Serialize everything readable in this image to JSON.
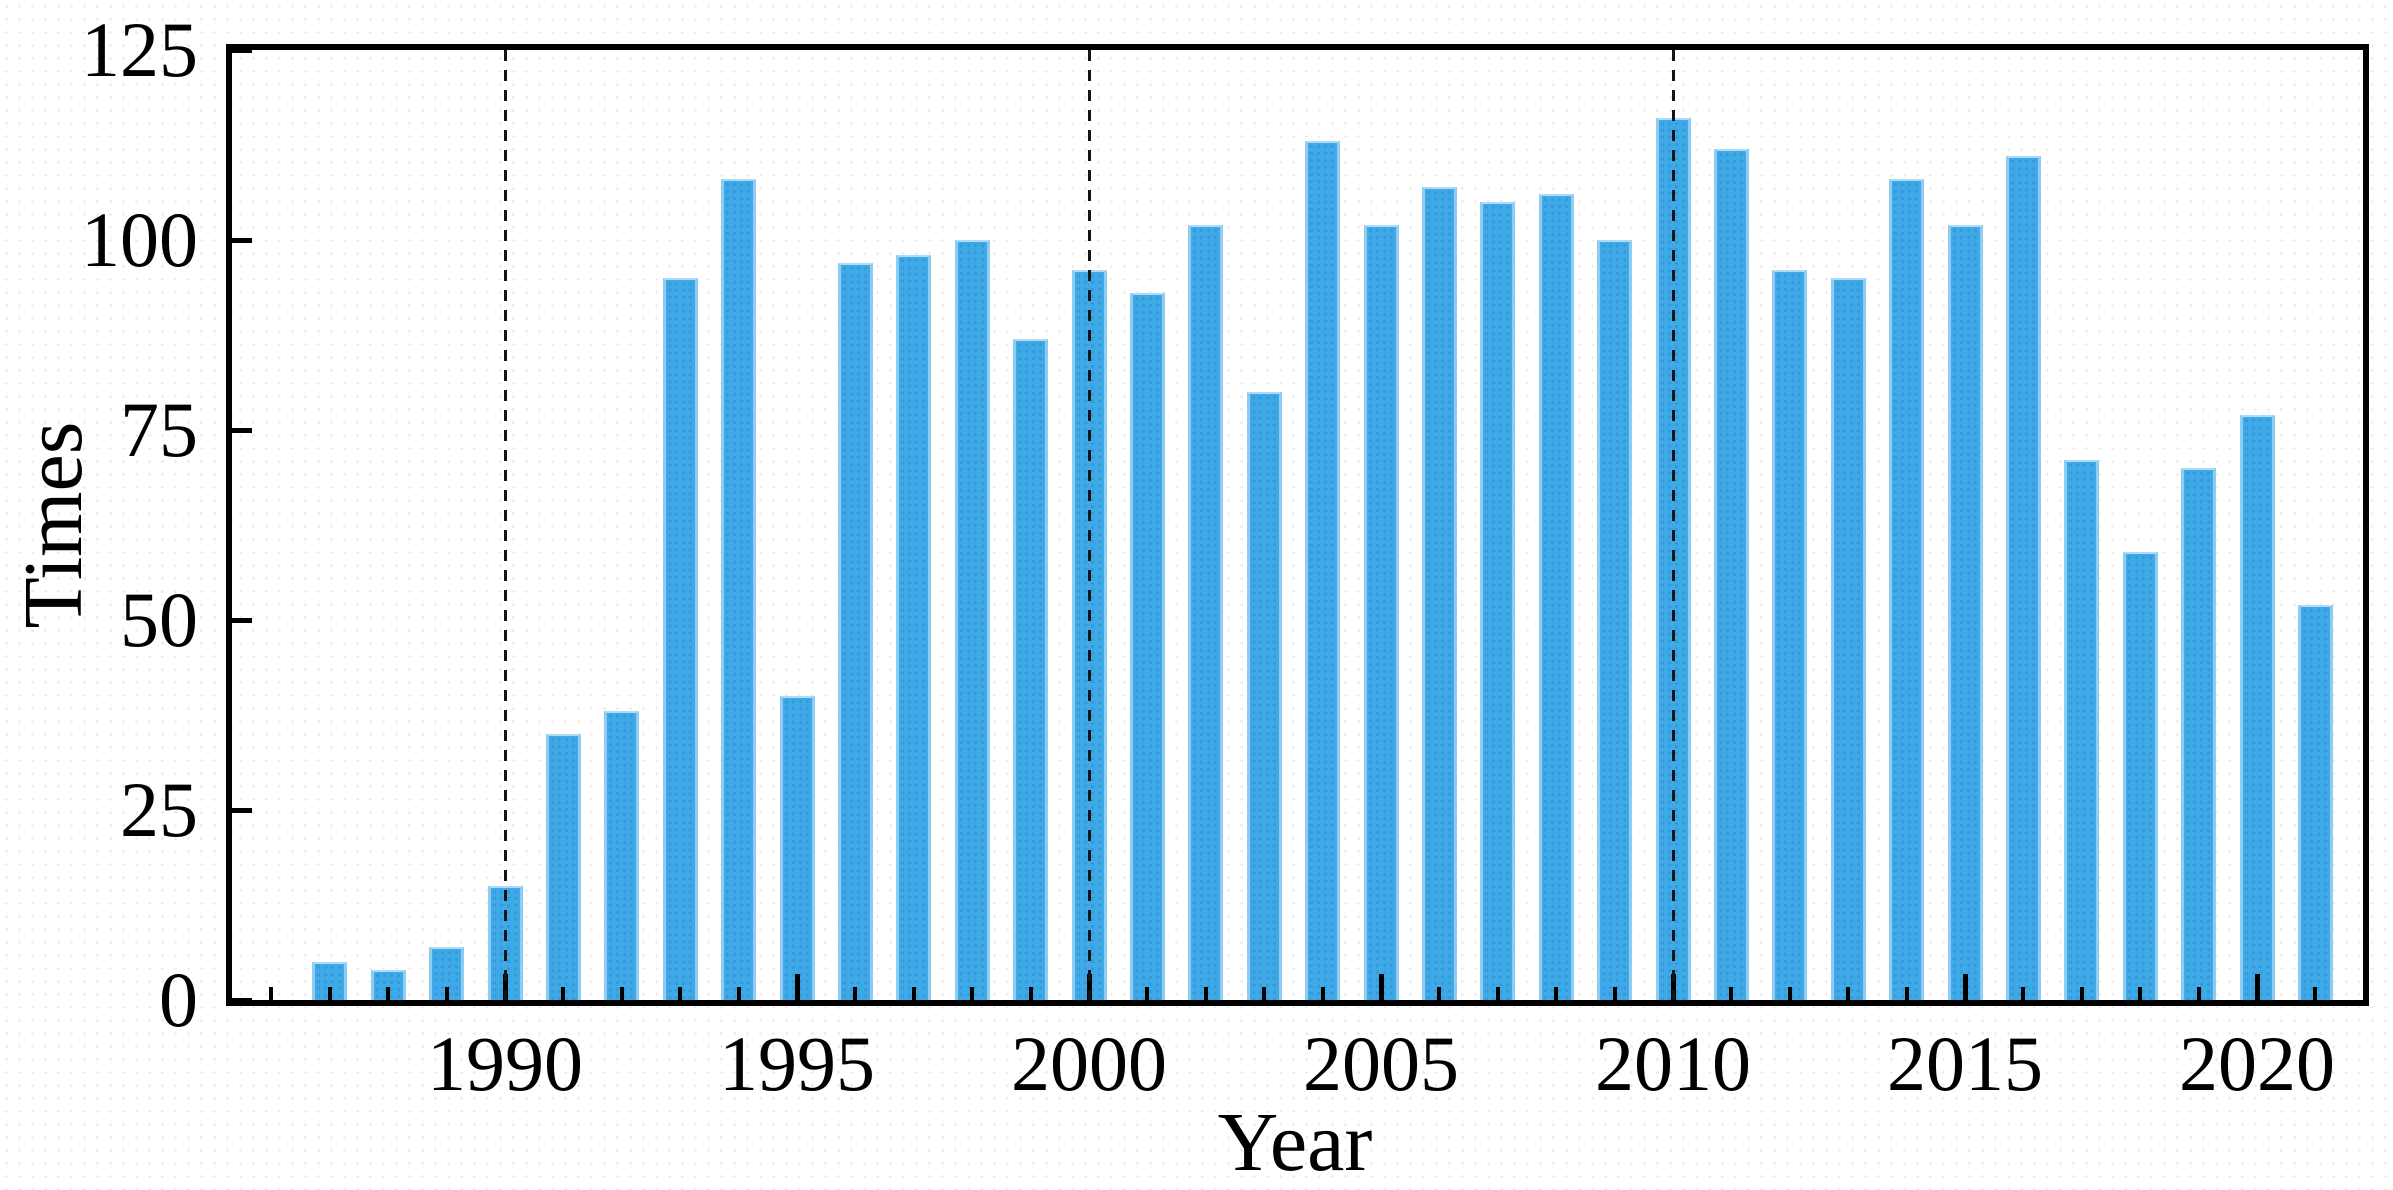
{
  "chart_data": {
    "type": "bar",
    "title": "",
    "xlabel": "Year",
    "ylabel": "Times",
    "x": [
      1987,
      1988,
      1989,
      1990,
      1991,
      1992,
      1993,
      1994,
      1995,
      1996,
      1997,
      1998,
      1999,
      2000,
      2001,
      2002,
      2003,
      2004,
      2005,
      2006,
      2007,
      2008,
      2009,
      2010,
      2011,
      2012,
      2013,
      2014,
      2015,
      2016,
      2017,
      2018,
      2019,
      2020,
      2021
    ],
    "values": [
      5,
      4,
      7,
      15,
      35,
      38,
      95,
      108,
      40,
      97,
      98,
      100,
      87,
      96,
      93,
      102,
      80,
      113,
      102,
      107,
      105,
      106,
      100,
      116,
      112,
      96,
      95,
      108,
      102,
      111,
      71,
      59,
      70,
      77,
      52
    ],
    "ylim": [
      0,
      125
    ],
    "yticks": [
      0,
      25,
      50,
      75,
      100,
      125
    ],
    "xticks": [
      1990,
      1995,
      2000,
      2005,
      2010,
      2015,
      2020
    ],
    "minor_ticks": {
      "from": 1986,
      "to": 2021
    },
    "reference_lines": [
      1990,
      2000,
      2010
    ],
    "grid": false,
    "legend": null,
    "colors": {
      "bar": "#3FA8E6",
      "bar_edge": "#8FCCF1",
      "frame": "#000000",
      "reference_line": "#141414",
      "text": "#000000"
    }
  }
}
